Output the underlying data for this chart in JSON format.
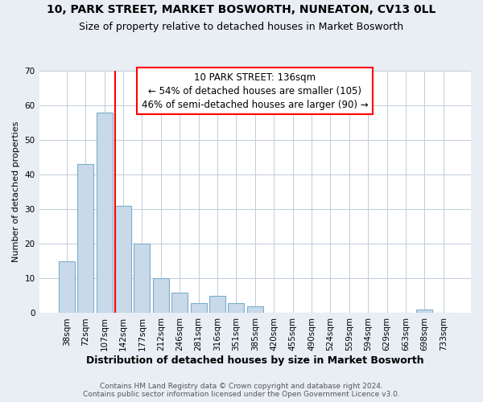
{
  "title1": "10, PARK STREET, MARKET BOSWORTH, NUNEATON, CV13 0LL",
  "title2": "Size of property relative to detached houses in Market Bosworth",
  "xlabel": "Distribution of detached houses by size in Market Bosworth",
  "ylabel": "Number of detached properties",
  "bar_labels": [
    "38sqm",
    "72sqm",
    "107sqm",
    "142sqm",
    "177sqm",
    "212sqm",
    "246sqm",
    "281sqm",
    "316sqm",
    "351sqm",
    "385sqm",
    "420sqm",
    "455sqm",
    "490sqm",
    "524sqm",
    "559sqm",
    "594sqm",
    "629sqm",
    "663sqm",
    "698sqm",
    "733sqm"
  ],
  "bar_values": [
    15,
    43,
    58,
    31,
    20,
    10,
    6,
    3,
    5,
    3,
    2,
    0,
    0,
    0,
    0,
    0,
    0,
    0,
    0,
    1,
    0
  ],
  "bar_color": "#c8d9ea",
  "bar_edge_color": "#7aafc8",
  "annotation_text_line1": "10 PARK STREET: 136sqm",
  "annotation_text_line2": "← 54% of detached houses are smaller (105)",
  "annotation_text_line3": "46% of semi-detached houses are larger (90) →",
  "vline_color": "red",
  "vline_x_index": 3,
  "ylim": [
    0,
    70
  ],
  "yticks": [
    0,
    10,
    20,
    30,
    40,
    50,
    60,
    70
  ],
  "footer1": "Contains HM Land Registry data © Crown copyright and database right 2024.",
  "footer2": "Contains public sector information licensed under the Open Government Licence v3.0.",
  "bg_color": "#e8eef4",
  "plot_bg_color": "#ffffff",
  "title_fontsize": 10,
  "subtitle_fontsize": 9,
  "xlabel_fontsize": 9,
  "ylabel_fontsize": 8,
  "tick_fontsize": 7.5,
  "footer_fontsize": 6.5,
  "annot_fontsize": 8.5
}
